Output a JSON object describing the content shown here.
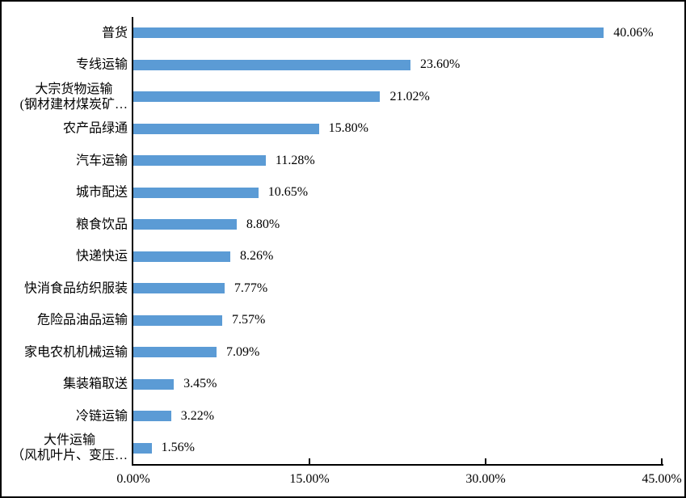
{
  "chart_data": {
    "type": "bar",
    "orientation": "horizontal",
    "title": "",
    "xlabel": "",
    "ylabel": "",
    "grid": false,
    "legend": null,
    "bar_color": "#5B9BD5",
    "axis_color": "#000000",
    "text_color": "#000000",
    "xlim": [
      0,
      45
    ],
    "x_tick_values": [
      0,
      15,
      30,
      45
    ],
    "x_tick_labels": [
      "0.00%",
      "15.00%",
      "30.00%",
      "45.00%"
    ],
    "categories": [
      "普货",
      "专线运输",
      "大宗货物运输\n(钢材建材煤炭矿…",
      "农产品绿通",
      "汽车运输",
      "城市配送",
      "粮食饮品",
      "快递快运",
      "快消食品纺织服装",
      "危险品油品运输",
      "家电农机机械运输",
      "集装箱取送",
      "冷链运输",
      "大件运输\n（风机叶片、变压…"
    ],
    "values": [
      40.06,
      23.6,
      21.02,
      15.8,
      11.28,
      10.65,
      8.8,
      8.26,
      7.77,
      7.57,
      7.09,
      3.45,
      3.22,
      1.56
    ],
    "value_labels": [
      "40.06%",
      "23.60%",
      "21.02%",
      "15.80%",
      "11.28%",
      "10.65%",
      "8.80%",
      "8.26%",
      "7.77%",
      "7.57%",
      "7.09%",
      "3.45%",
      "3.22%",
      "1.56%"
    ]
  }
}
